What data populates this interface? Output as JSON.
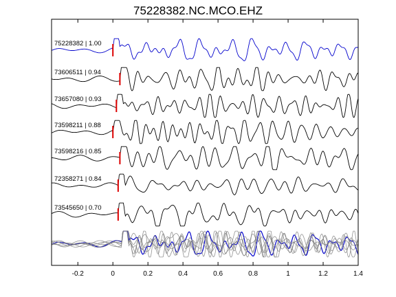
{
  "chart_data": {
    "type": "line",
    "title": "75228382.NC.MCO.EHZ",
    "xlabel": "",
    "ylabel": "",
    "xlim": [
      -0.35,
      1.4
    ],
    "x_ticks": [
      -0.2,
      0,
      0.2,
      0.4,
      0.6,
      0.8,
      1,
      1.2,
      1.4
    ],
    "x_tick_labels": [
      "-0.2",
      "0",
      "0.2",
      "0.4",
      "0.6",
      "0.8",
      "1",
      "1.2",
      "1.4"
    ],
    "grid": false,
    "colors": {
      "reference": "#0000cc",
      "trace": "#000000",
      "pick": "#dd0000",
      "stack": "#808080"
    },
    "traces": [
      {
        "label": "75228382 | 1.00",
        "id": "75228382",
        "cc": 1.0,
        "pick": 0.0,
        "color": "#0000cc"
      },
      {
        "label": "73606511 | 0.94",
        "id": "73606511",
        "cc": 0.94,
        "pick": 0.04,
        "color": "#000000"
      },
      {
        "label": "73657080 | 0.93",
        "id": "73657080",
        "cc": 0.93,
        "pick": 0.02,
        "color": "#000000"
      },
      {
        "label": "73598211 | 0.88",
        "id": "73598211",
        "cc": 0.88,
        "pick": 0.0,
        "color": "#000000"
      },
      {
        "label": "73598216 | 0.85",
        "id": "73598216",
        "cc": 0.85,
        "pick": 0.04,
        "color": "#000000"
      },
      {
        "label": "72358271 | 0.84",
        "id": "72358271",
        "cc": 0.84,
        "pick": 0.03,
        "color": "#000000"
      },
      {
        "label": "73545650 | 0.70",
        "id": "73545650",
        "cc": 0.7,
        "pick": 0.03,
        "color": "#000000"
      }
    ],
    "stack": {
      "onset": 0.05
    }
  }
}
